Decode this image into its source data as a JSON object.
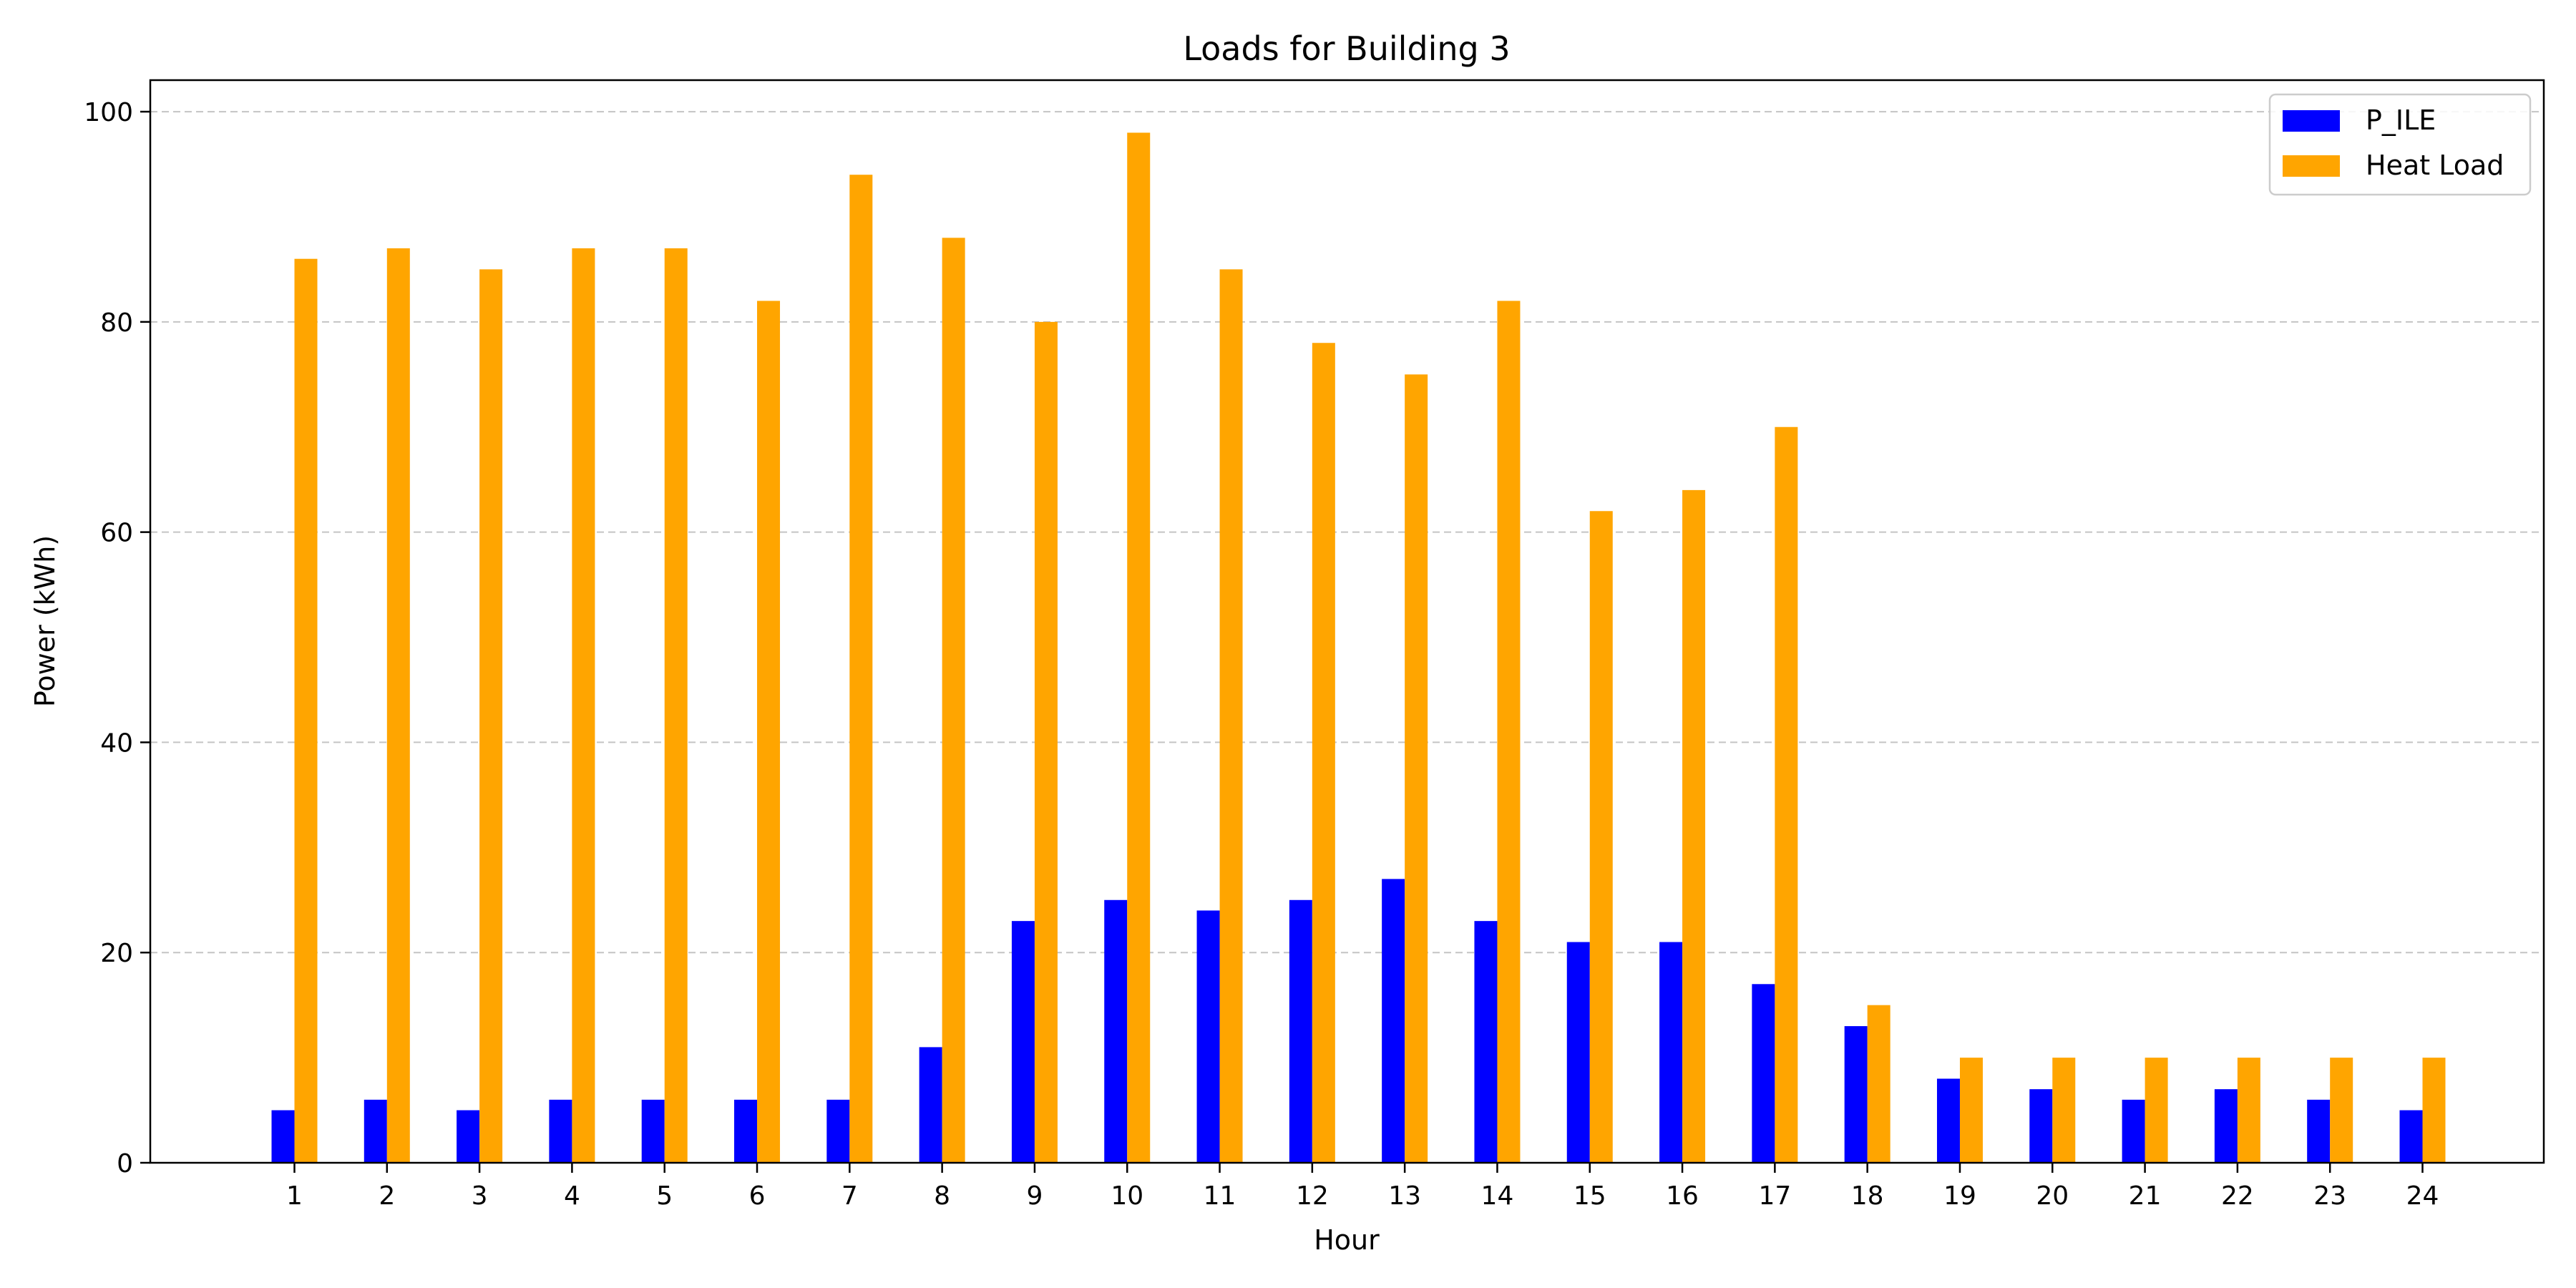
{
  "chart_data": {
    "type": "bar",
    "title": "Loads for Building 3",
    "xlabel": "Hour",
    "ylabel": "Power (kWh)",
    "categories": [
      "1",
      "2",
      "3",
      "4",
      "5",
      "6",
      "7",
      "8",
      "9",
      "10",
      "11",
      "12",
      "13",
      "14",
      "15",
      "16",
      "17",
      "18",
      "19",
      "20",
      "21",
      "22",
      "23",
      "24"
    ],
    "series": [
      {
        "name": "P_ILE",
        "color": "#0000ff",
        "values": [
          5,
          6,
          5,
          6,
          6,
          6,
          6,
          11,
          23,
          25,
          24,
          25,
          27,
          23,
          21,
          21,
          17,
          13,
          8,
          7,
          6,
          7,
          6,
          5
        ]
      },
      {
        "name": "Heat Load",
        "color": "#ffa500",
        "values": [
          86,
          87,
          85,
          87,
          87,
          82,
          94,
          88,
          80,
          98,
          85,
          78,
          75,
          82,
          62,
          64,
          70,
          15,
          10,
          10,
          10,
          10,
          10,
          10
        ]
      }
    ],
    "ylim": [
      0,
      103
    ],
    "yticks": [
      "0",
      "20",
      "40",
      "60",
      "80",
      "100"
    ],
    "grid": "horizontal-dashed",
    "legend_position": "top-right"
  }
}
